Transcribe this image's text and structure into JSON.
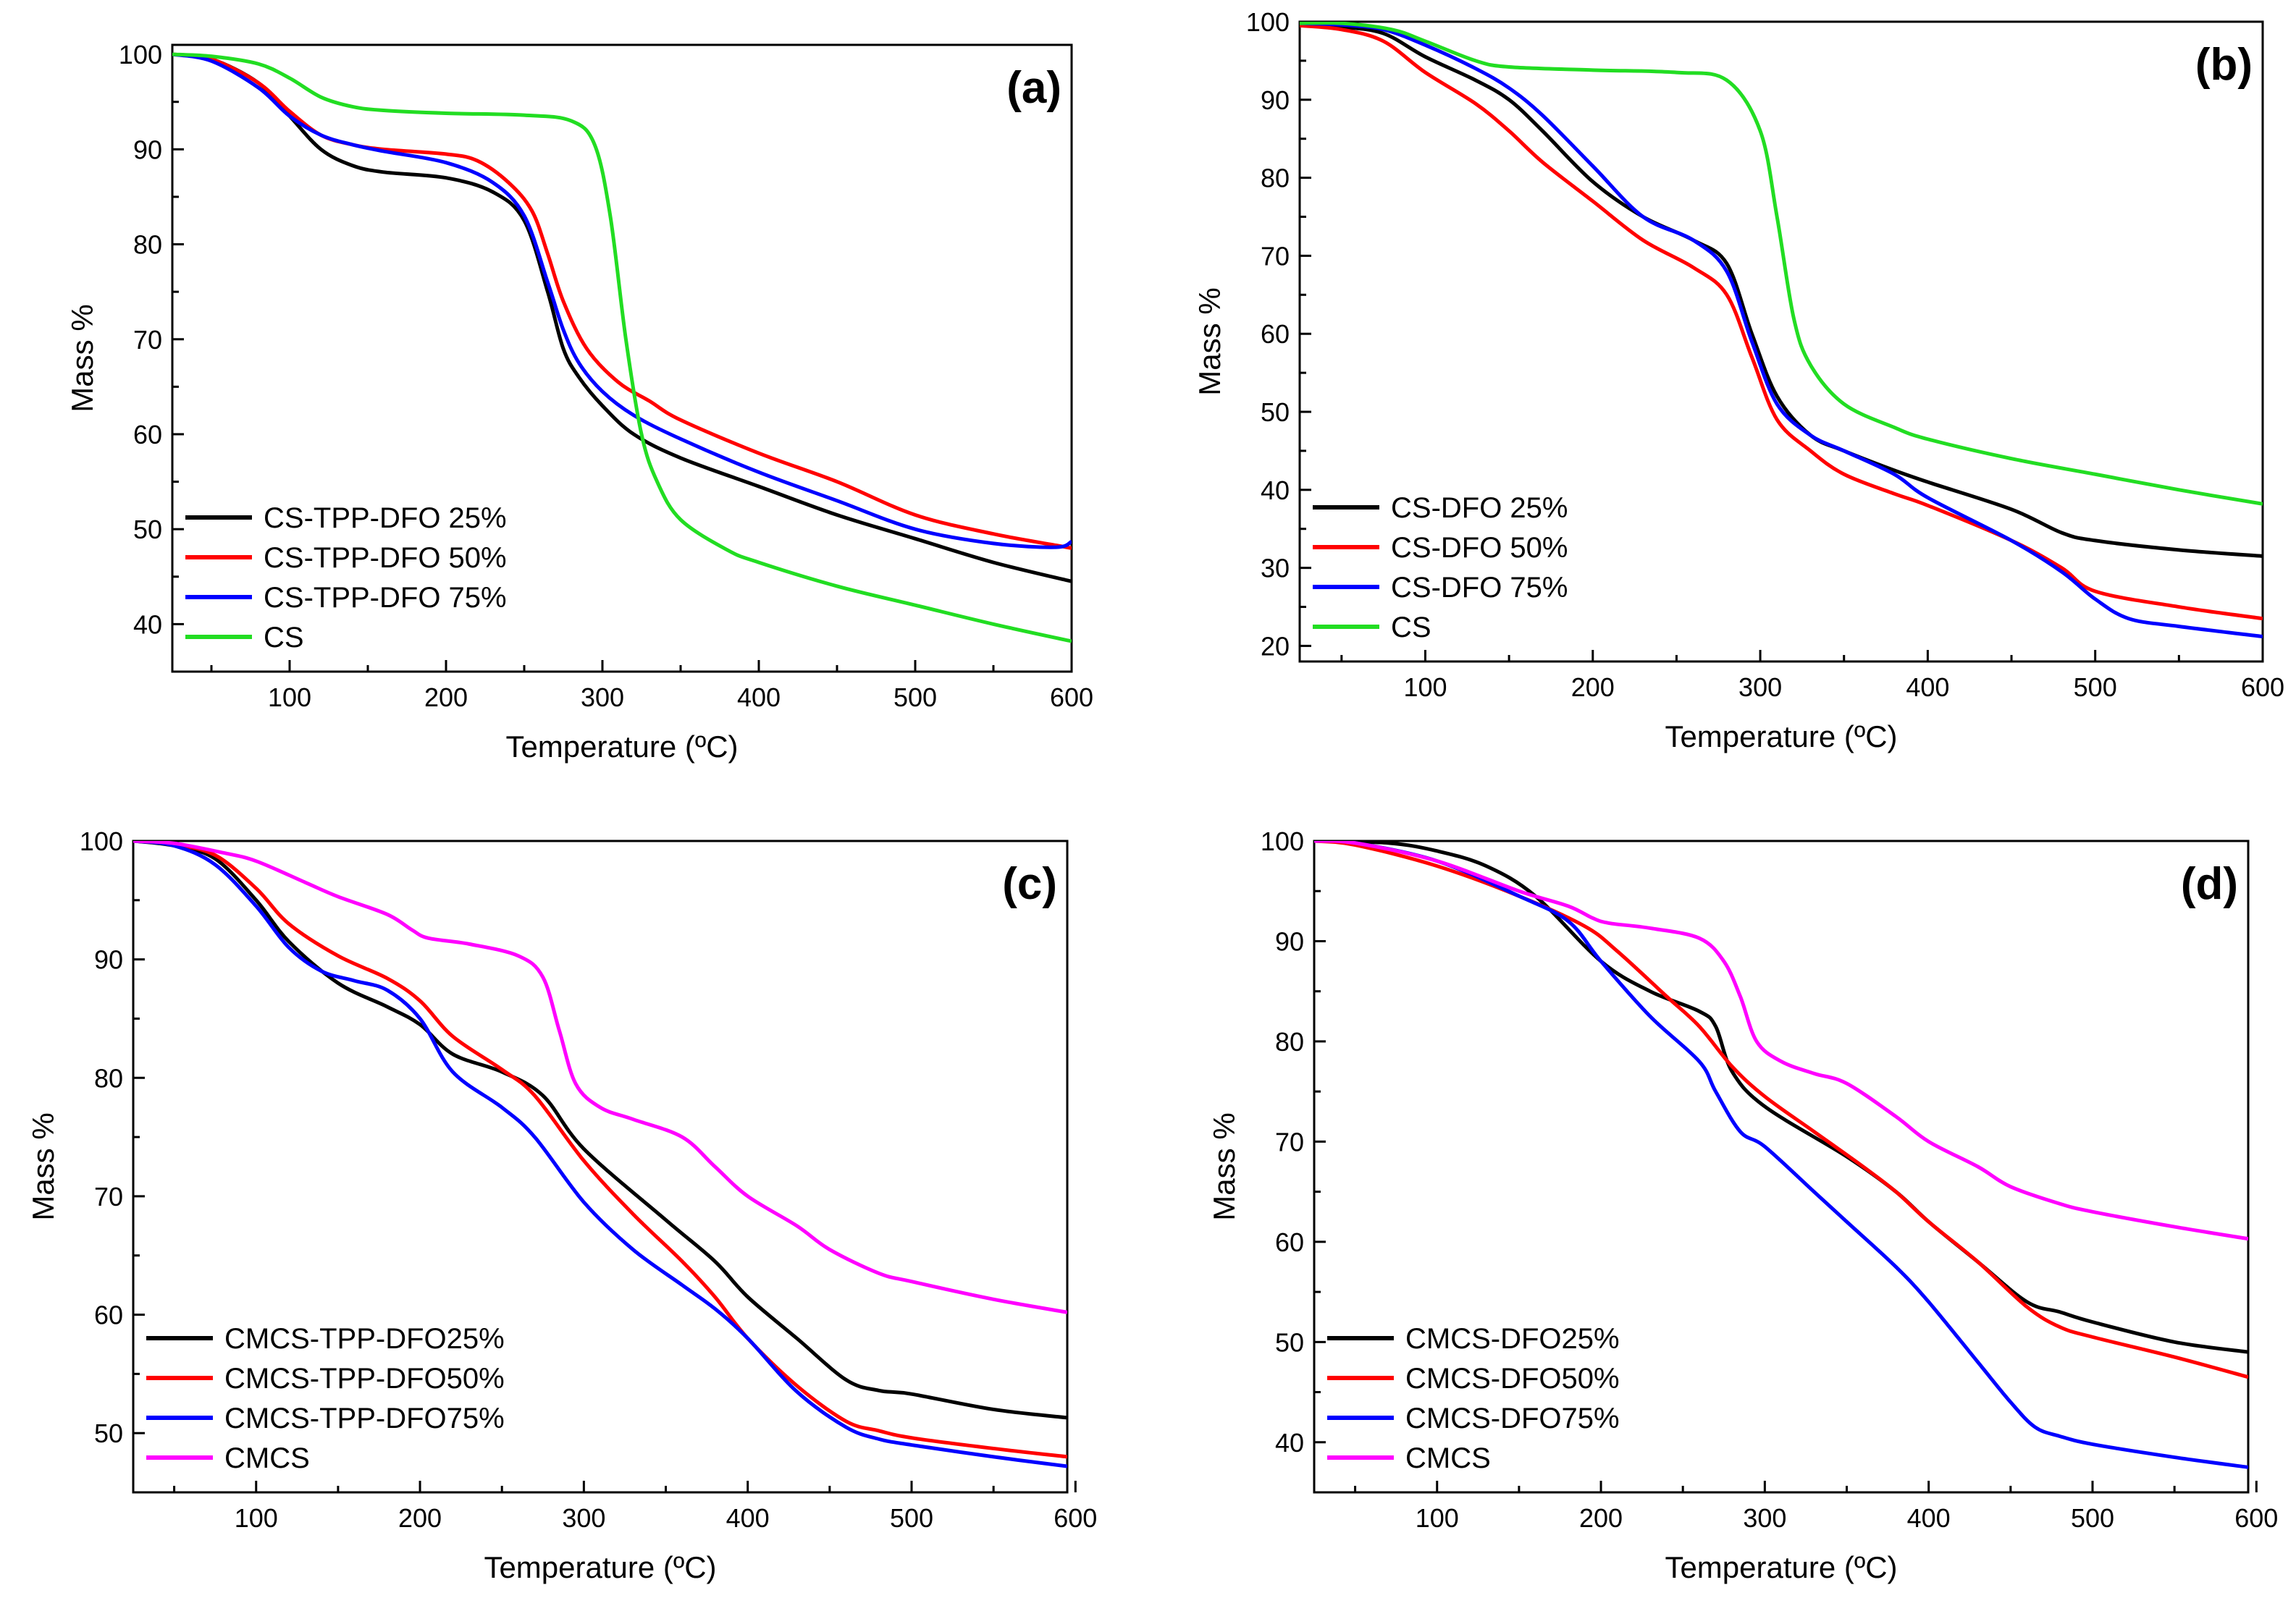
{
  "figure": {
    "description_free": true,
    "panels_count": 4
  },
  "chart_data": [
    {
      "type": "line",
      "panel_label": "(a)",
      "xlabel": "Temperature (ºC)",
      "ylabel": "Mass %",
      "xlim": [
        25,
        600
      ],
      "ylim": [
        35,
        101
      ],
      "xticks": [
        100,
        200,
        300,
        400,
        500,
        600
      ],
      "yticks": [
        40,
        50,
        60,
        70,
        80,
        90,
        100
      ],
      "grid": false,
      "legend_position": "bottom-left",
      "series": [
        {
          "name": "CS-TPP-DFO 25%",
          "color": "#000000",
          "x": [
            25,
            50,
            80,
            100,
            120,
            140,
            160,
            200,
            230,
            250,
            265,
            275,
            285,
            300,
            320,
            350,
            400,
            450,
            500,
            550,
            600
          ],
          "y": [
            100,
            99.5,
            97,
            93.5,
            90,
            88.3,
            87.6,
            87,
            85.5,
            82.5,
            75,
            69,
            66,
            63,
            60,
            57.5,
            54.5,
            51.5,
            49,
            46.5,
            44.5
          ]
        },
        {
          "name": "CS-TPP-DFO 50%",
          "color": "#ff0000",
          "x": [
            25,
            50,
            80,
            100,
            120,
            140,
            160,
            200,
            220,
            240,
            255,
            265,
            275,
            290,
            310,
            330,
            350,
            400,
            450,
            500,
            550,
            590,
            600
          ],
          "y": [
            100,
            99.5,
            97,
            94,
            91.5,
            90.5,
            90,
            89.5,
            88.8,
            86.5,
            83.5,
            79,
            74,
            69,
            65.5,
            63.5,
            61.5,
            58,
            55,
            51.5,
            49.5,
            48.3,
            48
          ]
        },
        {
          "name": "CS-TPP-DFO 75%",
          "color": "#0000ff",
          "x": [
            25,
            50,
            80,
            100,
            120,
            140,
            160,
            200,
            230,
            250,
            265,
            275,
            285,
            300,
            320,
            350,
            400,
            450,
            500,
            550,
            590,
            600
          ],
          "y": [
            100,
            99.3,
            96.5,
            93.5,
            91.5,
            90.5,
            89.8,
            88.6,
            86.5,
            83,
            76,
            71,
            67.5,
            64.5,
            62,
            59.5,
            56,
            53,
            50,
            48.5,
            48.1,
            48.7
          ]
        },
        {
          "name": "CS",
          "color": "#22dd22",
          "x": [
            25,
            50,
            80,
            100,
            120,
            140,
            160,
            200,
            250,
            280,
            295,
            305,
            315,
            325,
            335,
            350,
            380,
            400,
            450,
            500,
            550,
            600
          ],
          "y": [
            100,
            99.8,
            99,
            97.5,
            95.5,
            94.5,
            94.1,
            93.8,
            93.6,
            93,
            90.5,
            83,
            70,
            60,
            55,
            51,
            47.8,
            46.5,
            44,
            42,
            40,
            38.2
          ]
        }
      ]
    },
    {
      "type": "line",
      "panel_label": "(b)",
      "xlabel": "Temperature (ºC)",
      "ylabel": "Mass %",
      "xlim": [
        25,
        600
      ],
      "ylim": [
        18,
        100
      ],
      "xticks": [
        100,
        200,
        300,
        400,
        500,
        600
      ],
      "yticks": [
        20,
        30,
        40,
        50,
        60,
        70,
        80,
        90,
        100
      ],
      "grid": false,
      "legend_position": "bottom-left",
      "series": [
        {
          "name": "CS-DFO 25%",
          "color": "#000000",
          "x": [
            25,
            50,
            75,
            100,
            130,
            150,
            170,
            200,
            230,
            260,
            280,
            295,
            310,
            330,
            350,
            380,
            400,
            450,
            480,
            500,
            550,
            600
          ],
          "y": [
            99.5,
            99.3,
            98.5,
            95.5,
            92.5,
            90,
            86,
            79.5,
            75,
            72,
            69,
            60,
            52,
            47,
            45,
            42.5,
            41,
            37.5,
            34.5,
            33.5,
            32.3,
            31.5
          ]
        },
        {
          "name": "CS-DFO 50%",
          "color": "#ff0000",
          "x": [
            25,
            50,
            75,
            100,
            130,
            150,
            170,
            200,
            230,
            260,
            280,
            295,
            310,
            330,
            350,
            380,
            400,
            450,
            480,
            500,
            550,
            600
          ],
          "y": [
            99.5,
            99,
            97.5,
            93.5,
            89.5,
            86,
            82,
            77,
            72,
            68.5,
            65,
            57,
            49,
            45,
            42,
            39.5,
            38,
            33.5,
            30,
            27,
            25,
            23.5
          ]
        },
        {
          "name": "CS-DFO 75%",
          "color": "#0000ff",
          "x": [
            25,
            50,
            75,
            100,
            130,
            150,
            170,
            200,
            230,
            260,
            280,
            295,
            310,
            330,
            350,
            380,
            400,
            450,
            480,
            500,
            520,
            550,
            600
          ],
          "y": [
            99.8,
            99.6,
            99,
            97,
            94,
            91.5,
            88,
            81.5,
            75,
            72,
            68,
            59,
            51,
            47,
            45,
            42,
            39,
            33.5,
            29.5,
            26,
            23.5,
            22.5,
            21.2
          ]
        },
        {
          "name": "CS",
          "color": "#22dd22",
          "x": [
            25,
            50,
            80,
            100,
            130,
            150,
            200,
            250,
            280,
            300,
            310,
            320,
            330,
            350,
            380,
            400,
            450,
            500,
            550,
            600
          ],
          "y": [
            99.8,
            99.8,
            99,
            97.5,
            95,
            94.2,
            93.8,
            93.5,
            92.5,
            86,
            75,
            62,
            56,
            51,
            48,
            46.5,
            44,
            42,
            40,
            38.2
          ]
        }
      ]
    },
    {
      "type": "line",
      "panel_label": "(c)",
      "xlabel": "Temperature (ºC)",
      "ylabel": "Mass %",
      "xlim": [
        25,
        595
      ],
      "ylim": [
        45,
        100
      ],
      "xticks": [
        100,
        200,
        300,
        400,
        500,
        600
      ],
      "yticks": [
        50,
        60,
        70,
        80,
        90,
        100
      ],
      "grid": false,
      "legend_position": "bottom-left",
      "series": [
        {
          "name": "CMCS-TPP-DFO25%",
          "color": "#000000",
          "x": [
            25,
            50,
            75,
            100,
            120,
            150,
            180,
            200,
            220,
            250,
            275,
            300,
            350,
            380,
            400,
            430,
            460,
            480,
            500,
            550,
            595
          ],
          "y": [
            100,
            99.6,
            98.5,
            95,
            91.5,
            88,
            86,
            84.5,
            82,
            80.5,
            78.5,
            74,
            68,
            64.5,
            61.5,
            58,
            54.5,
            53.6,
            53.3,
            52,
            51.3
          ]
        },
        {
          "name": "CMCS-TPP-DFO50%",
          "color": "#ff0000",
          "x": [
            25,
            50,
            75,
            100,
            120,
            150,
            180,
            200,
            220,
            250,
            270,
            300,
            330,
            360,
            380,
            400,
            430,
            460,
            480,
            500,
            550,
            595
          ],
          "y": [
            100,
            99.7,
            98.8,
            96,
            93,
            90.3,
            88.4,
            86.5,
            83.5,
            80.7,
            78.5,
            73,
            68.5,
            64.5,
            61.5,
            58,
            54,
            51,
            50.2,
            49.6,
            48.7,
            48
          ]
        },
        {
          "name": "CMCS-TPP-DFO75%",
          "color": "#0000ff",
          "x": [
            25,
            50,
            75,
            100,
            120,
            140,
            160,
            180,
            200,
            220,
            250,
            270,
            300,
            330,
            360,
            380,
            400,
            430,
            460,
            480,
            500,
            550,
            595
          ],
          "y": [
            100,
            99.6,
            98,
            94.5,
            91,
            89,
            88.2,
            87.4,
            85,
            80.5,
            77.5,
            75,
            69.5,
            65.5,
            62.5,
            60.5,
            58,
            53.5,
            50.5,
            49.5,
            49,
            48,
            47.2
          ]
        },
        {
          "name": "CMCS",
          "color": "#ff00ff",
          "x": [
            25,
            50,
            80,
            100,
            130,
            150,
            180,
            195,
            205,
            230,
            260,
            275,
            285,
            295,
            310,
            330,
            360,
            380,
            400,
            430,
            450,
            480,
            500,
            550,
            595
          ],
          "y": [
            100,
            99.8,
            99,
            98.3,
            96.5,
            95.3,
            93.8,
            92.5,
            91.8,
            91.3,
            90.3,
            88.5,
            84,
            79.5,
            77.5,
            76.5,
            75,
            72.5,
            70,
            67.5,
            65.5,
            63.5,
            62.8,
            61.3,
            60.2
          ]
        }
      ]
    },
    {
      "type": "line",
      "panel_label": "(d)",
      "xlabel": "Temperature (ºC)",
      "ylabel": "Mass %",
      "xlim": [
        25,
        595
      ],
      "ylim": [
        35,
        100
      ],
      "xticks": [
        100,
        200,
        300,
        400,
        500,
        600
      ],
      "yticks": [
        40,
        50,
        60,
        70,
        80,
        90,
        100
      ],
      "grid": false,
      "legend_position": "bottom-left",
      "series": [
        {
          "name": "CMCS-DFO25%",
          "color": "#000000",
          "x": [
            25,
            70,
            100,
            130,
            160,
            200,
            230,
            260,
            270,
            280,
            300,
            350,
            380,
            400,
            430,
            460,
            480,
            500,
            550,
            595
          ],
          "y": [
            100,
            99.8,
            99,
            97.5,
            94.5,
            88,
            85,
            83,
            81.5,
            77,
            73.5,
            68.5,
            65,
            62,
            58,
            54,
            53,
            52,
            50,
            49
          ]
        },
        {
          "name": "CMCS-DFO50%",
          "color": "#ff0000",
          "x": [
            25,
            50,
            100,
            150,
            190,
            210,
            240,
            260,
            280,
            300,
            330,
            360,
            380,
            400,
            430,
            460,
            480,
            500,
            550,
            595
          ],
          "y": [
            100,
            99.6,
            97.5,
            94.5,
            91.5,
            89,
            84.5,
            81.5,
            77.5,
            74.5,
            71,
            67.5,
            65,
            62,
            58,
            53.5,
            51.5,
            50.5,
            48.5,
            46.5
          ]
        },
        {
          "name": "CMCS-DFO75%",
          "color": "#0000ff",
          "x": [
            25,
            50,
            100,
            150,
            180,
            200,
            230,
            260,
            270,
            285,
            300,
            330,
            350,
            380,
            400,
            430,
            450,
            465,
            480,
            500,
            550,
            595
          ],
          "y": [
            100,
            99.8,
            98,
            94.5,
            92,
            88,
            82.5,
            78,
            75,
            71,
            69.5,
            65,
            62,
            57.5,
            54,
            48,
            44,
            41.5,
            40.6,
            39.8,
            38.5,
            37.5
          ]
        },
        {
          "name": "CMCS",
          "color": "#ff00ff",
          "x": [
            25,
            50,
            100,
            150,
            180,
            195,
            205,
            230,
            260,
            275,
            285,
            295,
            310,
            330,
            350,
            380,
            400,
            430,
            450,
            480,
            500,
            550,
            595
          ],
          "y": [
            100,
            99.8,
            98,
            95,
            93.5,
            92.3,
            91.8,
            91.3,
            90.3,
            88,
            84.5,
            80,
            78,
            76.8,
            75.8,
            72.5,
            70,
            67.5,
            65.5,
            63.8,
            63,
            61.5,
            60.3
          ]
        }
      ]
    }
  ]
}
